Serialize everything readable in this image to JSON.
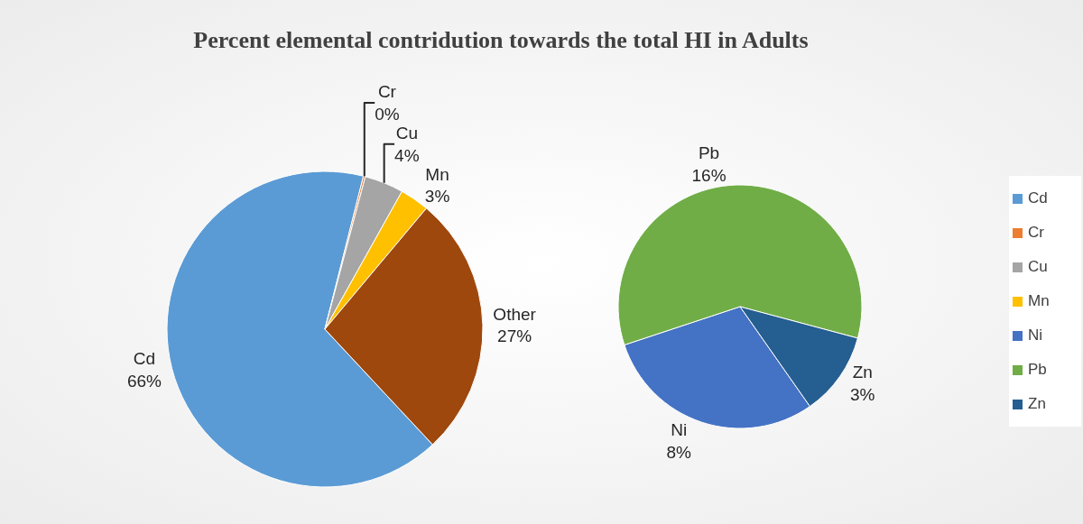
{
  "chart_data": [
    {
      "type": "pie",
      "title": "Percent elemental contridution towards the total HI in Adults",
      "categories": [
        "Cd",
        "Cr",
        "Cu",
        "Mn",
        "Other"
      ],
      "values": [
        66,
        0.2,
        4,
        3,
        27
      ],
      "value_labels": [
        "66%",
        "0%",
        "4%",
        "3%",
        "27%"
      ],
      "colors": [
        "#5b9bd5",
        "#ed7d31",
        "#a5a5a5",
        "#ffc000",
        "#9e480e"
      ],
      "legend": "right"
    },
    {
      "type": "pie",
      "categories": [
        "Ni",
        "Pb",
        "Zn"
      ],
      "values": [
        8,
        16,
        3
      ],
      "value_labels": [
        "8%",
        "16%",
        "3%"
      ],
      "colors": [
        "#4472c4",
        "#70ad47",
        "#255e91"
      ],
      "legend": "right"
    }
  ]
}
